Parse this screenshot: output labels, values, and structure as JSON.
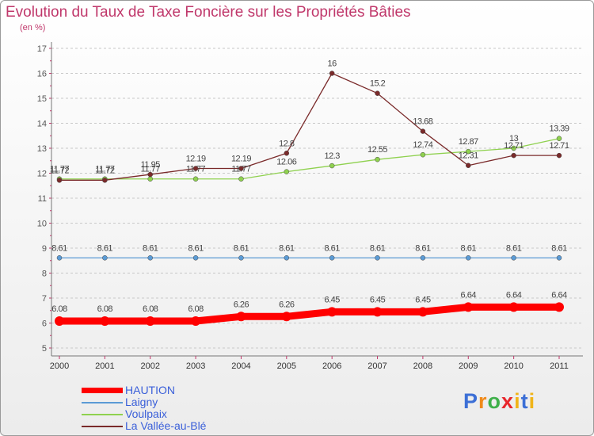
{
  "title": "Evolution du Taux de Taxe Foncière sur les Propriétés Bâties",
  "unit_label": "(en %)",
  "logo": {
    "text": "Proxiti",
    "letters": [
      "P",
      "r",
      "o",
      "x",
      "i",
      "t",
      "i"
    ]
  },
  "chart_data": {
    "type": "line",
    "x": [
      "2000",
      "2001",
      "2002",
      "2003",
      "2004",
      "2005",
      "2006",
      "2007",
      "2008",
      "2009",
      "2010",
      "2011"
    ],
    "ylim": [
      5,
      17
    ],
    "yticks": [
      5,
      6,
      7,
      8,
      9,
      10,
      11,
      12,
      13,
      14,
      15,
      16,
      17
    ],
    "grid": true,
    "legend_position": "bottom-left",
    "series": [
      {
        "name": "HAUTION",
        "color": "#ff0000",
        "values": [
          6.08,
          6.08,
          6.08,
          6.08,
          6.26,
          6.26,
          6.45,
          6.45,
          6.45,
          6.64,
          6.64,
          6.64
        ],
        "labels": [
          "6.08",
          "6.08",
          "6.08",
          "6.08",
          "6.26",
          "6.26",
          "6.45",
          "6.45",
          "6.45",
          "6.64",
          "6.64",
          "6.64"
        ]
      },
      {
        "name": "Laigny",
        "color": "#5b9bd5",
        "values": [
          8.61,
          8.61,
          8.61,
          8.61,
          8.61,
          8.61,
          8.61,
          8.61,
          8.61,
          8.61,
          8.61,
          8.61
        ],
        "labels": [
          "8.61",
          "8.61",
          "8.61",
          "8.61",
          "8.61",
          "8.61",
          "8.61",
          "8.61",
          "8.61",
          "8.61",
          "8.61",
          "8.61"
        ]
      },
      {
        "name": "Voulpaix",
        "color": "#8fd14f",
        "values": [
          11.77,
          11.77,
          11.77,
          11.77,
          11.77,
          12.06,
          12.3,
          12.55,
          12.74,
          12.87,
          13.0,
          13.39
        ],
        "labels": [
          "11.77",
          "11.77",
          "11.77",
          "11.77",
          "11.77",
          "12.06",
          "12.3",
          "12.55",
          "12.74",
          "12.87",
          "13",
          "13.39"
        ]
      },
      {
        "name": "La Vallée-au-Blé",
        "color": "#7a2a2a",
        "values": [
          11.72,
          11.72,
          11.95,
          12.19,
          12.19,
          12.8,
          16.0,
          15.2,
          13.68,
          12.31,
          12.71,
          12.71
        ],
        "labels": [
          "11.72",
          "11.72",
          "11.95",
          "12.19",
          "12.19",
          "12.8",
          "16",
          "15.2",
          "13.68",
          "12.31",
          "12.71",
          "12.71"
        ]
      }
    ]
  }
}
